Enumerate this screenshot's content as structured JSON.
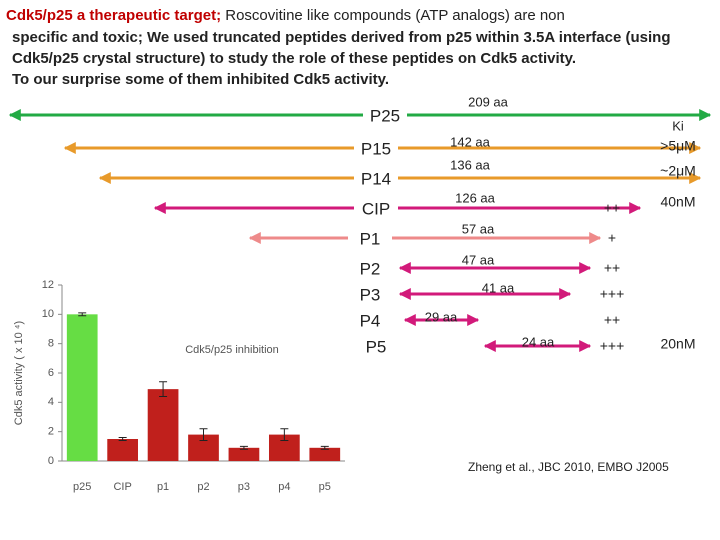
{
  "header": {
    "highlight": "Cdk5/p25 a therapeutic target;",
    "lines": [
      " Roscovitine like compounds (ATP analogs) are non",
      "specific and toxic; We used truncated peptides derived from p25 within 3.5A interface (using",
      "Cdk5/p25 crystal structure) to study the role of these peptides on Cdk5  activity.",
      "To our surprise some of them inhibited  Cdk5 activity."
    ]
  },
  "ki_header": "Ki",
  "rows": [
    {
      "name": "P25",
      "length": "209 aa"
    },
    {
      "name": "P15",
      "length": "142 aa",
      "ki": ">5μM"
    },
    {
      "name": "P14",
      "length": "136 aa",
      "ki": "~2μM"
    },
    {
      "name": "CIP",
      "length": "126 aa",
      "activity": "++",
      "ki": "40nM"
    },
    {
      "name": "P1",
      "length": "57 aa",
      "activity": "+"
    },
    {
      "name": "P2",
      "length": "47 aa",
      "activity": "++"
    },
    {
      "name": "P3",
      "length": "41 aa",
      "activity": "+++"
    },
    {
      "name": "P4",
      "length": "29 aa",
      "activity": "++"
    },
    {
      "name": "P5",
      "length": "24 aa",
      "activity": "+++",
      "ki": "20nM"
    }
  ],
  "citation": "Zheng et al., JBC 2010, EMBO J2005",
  "chart_data": {
    "type": "bar",
    "y_label": "Cdk5 activity ( x 10 ⁴)",
    "annotation": "Cdk5/p25 inhibition",
    "categories": [
      "p25",
      "CIP",
      "p1",
      "p2",
      "p3",
      "p4",
      "p5"
    ],
    "values": [
      10,
      1.5,
      4.9,
      1.8,
      0.9,
      1.8,
      0.9
    ],
    "errors": [
      0.1,
      0.1,
      0.5,
      0.4,
      0.1,
      0.4,
      0.1
    ],
    "colors": [
      "#66dd44",
      "#c0201c",
      "#c0201c",
      "#c0201c",
      "#c0201c",
      "#c0201c",
      "#c0201c"
    ],
    "ylim": [
      0,
      12
    ],
    "yticks": [
      0,
      2,
      4,
      6,
      8,
      10,
      12
    ]
  }
}
